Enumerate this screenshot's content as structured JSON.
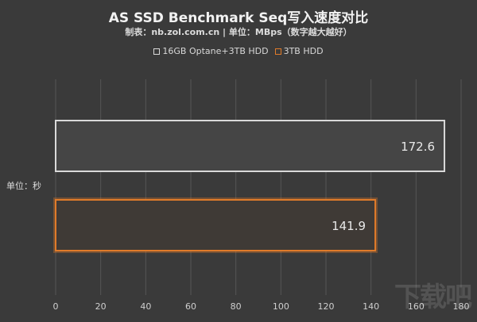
{
  "title": "AS SSD Benchmark Seq写入速度对比",
  "subtitle": "制表：nb.zol.com.cn | 单位：MBps（数字越大越好）",
  "ylabel": "单位：秒",
  "watermark": "下载吧",
  "colors": {
    "background": "#3a3a3a",
    "grid": "#555555",
    "series1": "#d9d9d9",
    "series2": "#e07b2a"
  },
  "chart_data": {
    "type": "bar",
    "orientation": "horizontal",
    "title": "AS SSD Benchmark Seq写入速度对比",
    "subtitle": "制表：nb.zol.com.cn | 单位：MBps（数字越大越好）",
    "ylabel": "单位：秒",
    "xlabel": "",
    "xlim": [
      0,
      180
    ],
    "xticks": [
      "0",
      "20",
      "40",
      "60",
      "80",
      "100",
      "120",
      "140",
      "160",
      "180"
    ],
    "grid": true,
    "legend_position": "top",
    "series": [
      {
        "name": "16GB Optane+3TB HDD",
        "value": 172.6,
        "label": "172.6",
        "color": "#d9d9d9"
      },
      {
        "name": "3TB HDD",
        "value": 141.9,
        "label": "141.9",
        "color": "#e07b2a"
      }
    ]
  }
}
